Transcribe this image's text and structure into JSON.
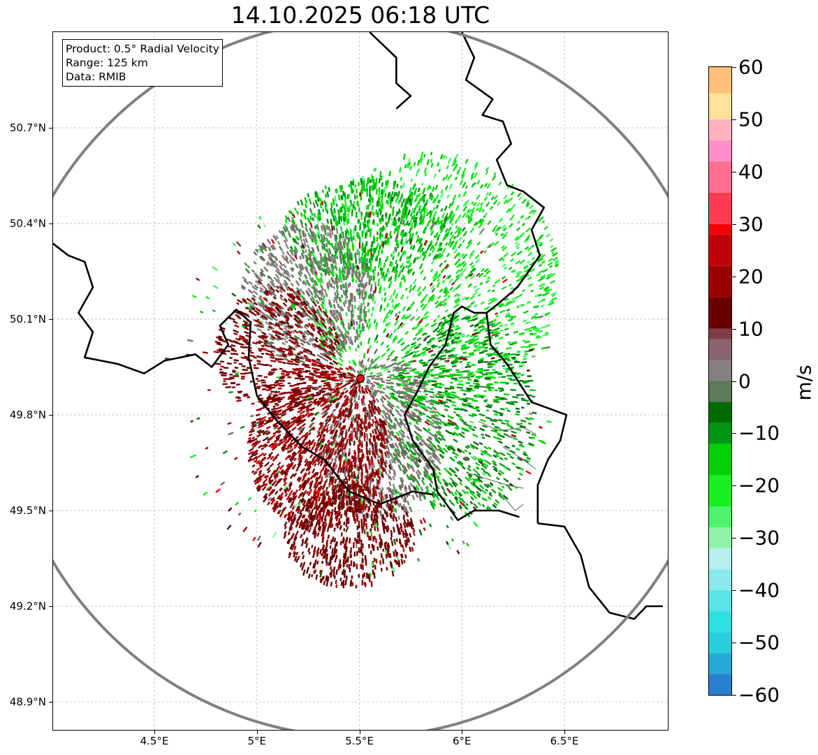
{
  "title": "14.10.2025 06:18 UTC",
  "info_box": {
    "product": "Product: 0.5° Radial Velocity",
    "range": "Range: 125 km",
    "data": "Data: RMIB"
  },
  "map": {
    "lon_range": [
      4.0,
      7.0
    ],
    "lat_range": [
      48.8,
      50.98
    ],
    "lat_ticks": [
      {
        "value": 50.7,
        "label": "50.7°N"
      },
      {
        "value": 50.4,
        "label": "50.4°N"
      },
      {
        "value": 50.1,
        "label": "50.1°N"
      },
      {
        "value": 49.8,
        "label": "49.8°N"
      },
      {
        "value": 49.5,
        "label": "49.5°N"
      },
      {
        "value": 49.2,
        "label": "49.2°N"
      },
      {
        "value": 48.9,
        "label": "48.9°N"
      }
    ],
    "lon_ticks": [
      {
        "value": 4.5,
        "label": "4.5°E"
      },
      {
        "value": 5.0,
        "label": "5°E"
      },
      {
        "value": 5.5,
        "label": "5.5°E"
      },
      {
        "value": 6.0,
        "label": "6°E"
      },
      {
        "value": 6.5,
        "label": "6.5°E"
      }
    ],
    "radar_site": {
      "lon": 5.505,
      "lat": 49.914
    },
    "range_km": 125,
    "colors": {
      "range_ring": "#808080",
      "gridline": "#b0b0b0",
      "border": "#000000",
      "province_border": "#7a7a7a",
      "radar_marker": "#e8141b"
    },
    "national_borders": [
      [
        [
          6.0,
          51.0
        ],
        [
          6.06,
          50.92
        ],
        [
          6.02,
          50.85
        ],
        [
          6.15,
          50.79
        ],
        [
          6.1,
          50.74
        ],
        [
          6.2,
          50.72
        ],
        [
          6.24,
          50.65
        ],
        [
          6.17,
          50.6
        ],
        [
          6.22,
          50.52
        ],
        [
          6.3,
          50.5
        ],
        [
          6.4,
          50.45
        ],
        [
          6.34,
          50.38
        ],
        [
          6.38,
          50.3
        ],
        [
          6.27,
          50.2
        ],
        [
          6.18,
          50.15
        ],
        [
          6.12,
          50.12
        ]
      ],
      [
        [
          6.12,
          50.12
        ],
        [
          6.06,
          50.12
        ],
        [
          6.0,
          50.14
        ],
        [
          5.96,
          50.12
        ],
        [
          5.92,
          50.02
        ],
        [
          5.84,
          49.95
        ],
        [
          5.78,
          49.87
        ],
        [
          5.72,
          49.8
        ],
        [
          5.76,
          49.72
        ],
        [
          5.86,
          49.63
        ],
        [
          5.88,
          49.56
        ],
        [
          5.98,
          49.47
        ],
        [
          6.06,
          49.5
        ],
        [
          6.18,
          49.5
        ],
        [
          6.28,
          49.48
        ]
      ],
      [
        [
          6.12,
          50.12
        ],
        [
          6.14,
          50.02
        ],
        [
          6.22,
          49.96
        ],
        [
          6.34,
          49.84
        ],
        [
          6.51,
          49.8
        ],
        [
          6.48,
          49.72
        ],
        [
          6.42,
          49.66
        ],
        [
          6.37,
          49.58
        ],
        [
          6.37,
          49.46
        ]
      ],
      [
        [
          6.37,
          49.46
        ],
        [
          6.5,
          49.45
        ],
        [
          6.58,
          49.36
        ],
        [
          6.62,
          49.26
        ],
        [
          6.72,
          49.18
        ],
        [
          6.84,
          49.16
        ],
        [
          6.9,
          49.2
        ],
        [
          6.98,
          49.2
        ]
      ],
      [
        [
          4.0,
          50.34
        ],
        [
          4.08,
          50.3
        ],
        [
          4.16,
          50.28
        ],
        [
          4.2,
          50.2
        ],
        [
          4.13,
          50.12
        ],
        [
          4.2,
          50.06
        ],
        [
          4.16,
          49.98
        ],
        [
          4.32,
          49.96
        ],
        [
          4.45,
          49.93
        ],
        [
          4.55,
          49.97
        ],
        [
          4.7,
          49.99
        ],
        [
          4.78,
          49.95
        ],
        [
          4.86,
          50.02
        ],
        [
          4.82,
          50.08
        ],
        [
          4.9,
          50.13
        ],
        [
          4.97,
          50.09
        ],
        [
          4.96,
          49.98
        ],
        [
          5.0,
          49.86
        ],
        [
          5.1,
          49.78
        ],
        [
          5.22,
          49.7
        ],
        [
          5.33,
          49.66
        ],
        [
          5.45,
          49.56
        ],
        [
          5.6,
          49.52
        ],
        [
          5.76,
          49.56
        ],
        [
          5.86,
          49.55
        ]
      ],
      [
        [
          5.55,
          51.0
        ],
        [
          5.68,
          50.92
        ],
        [
          5.68,
          50.84
        ],
        [
          5.75,
          50.8
        ],
        [
          5.68,
          50.76
        ]
      ]
    ],
    "province_borders": [
      [
        [
          6.08,
          49.78
        ],
        [
          6.18,
          49.75
        ],
        [
          6.3,
          49.76
        ],
        [
          6.36,
          49.74
        ]
      ],
      [
        [
          6.2,
          49.7
        ],
        [
          6.3,
          49.66
        ],
        [
          6.36,
          49.63
        ]
      ],
      [
        [
          6.02,
          49.62
        ],
        [
          6.12,
          49.6
        ],
        [
          6.22,
          49.58
        ],
        [
          6.3,
          49.57
        ]
      ],
      [
        [
          6.18,
          49.56
        ],
        [
          6.26,
          49.5
        ],
        [
          6.3,
          49.52
        ]
      ]
    ]
  },
  "colorbar": {
    "vmin": -60,
    "vmax": 60,
    "ticks": [
      {
        "value": 60,
        "label": "60"
      },
      {
        "value": 50,
        "label": "50"
      },
      {
        "value": 40,
        "label": "40"
      },
      {
        "value": 30,
        "label": "30"
      },
      {
        "value": 20,
        "label": "20"
      },
      {
        "value": 10,
        "label": "10"
      },
      {
        "value": 0,
        "label": "0"
      },
      {
        "value": -10,
        "label": "−10"
      },
      {
        "value": -20,
        "label": "−20"
      },
      {
        "value": -30,
        "label": "−30"
      },
      {
        "value": -40,
        "label": "−40"
      },
      {
        "value": -50,
        "label": "−50"
      },
      {
        "value": -60,
        "label": "−60"
      }
    ],
    "unit": "m/s",
    "stops": [
      {
        "value": -60,
        "color": "#2a7fd0"
      },
      {
        "value": -56,
        "color": "#27a9d6"
      },
      {
        "value": -52,
        "color": "#26cfdd"
      },
      {
        "value": -48,
        "color": "#2ee0e0"
      },
      {
        "value": -44,
        "color": "#59e3e4"
      },
      {
        "value": -40,
        "color": "#8ae9ea"
      },
      {
        "value": -36,
        "color": "#b6eff0"
      },
      {
        "value": -32,
        "color": "#90f2a9"
      },
      {
        "value": -28,
        "color": "#4cf36b"
      },
      {
        "value": -24,
        "color": "#18ee20"
      },
      {
        "value": -18,
        "color": "#02cf06"
      },
      {
        "value": -12,
        "color": "#019514"
      },
      {
        "value": -8,
        "color": "#006a00"
      },
      {
        "value": -4,
        "color": "#5a7a5a"
      },
      {
        "value": 0,
        "color": "#878080"
      },
      {
        "value": 4,
        "color": "#89646e"
      },
      {
        "value": 8,
        "color": "#7e3e46"
      },
      {
        "value": 10,
        "color": "#6a0000"
      },
      {
        "value": 16,
        "color": "#9a0000"
      },
      {
        "value": 22,
        "color": "#c00008"
      },
      {
        "value": 28,
        "color": "#f20005"
      },
      {
        "value": 30,
        "color": "#ff3b52"
      },
      {
        "value": 36,
        "color": "#ff6f92"
      },
      {
        "value": 42,
        "color": "#ff90c8"
      },
      {
        "value": 46,
        "color": "#ffb3c0"
      },
      {
        "value": 50,
        "color": "#ffe19a"
      },
      {
        "value": 55,
        "color": "#ffc07a"
      },
      {
        "value": 60,
        "color": "#ff9a52"
      }
    ]
  },
  "echo_regions": [
    {
      "lon": 5.85,
      "lat": 50.22,
      "rlon": 0.62,
      "rlat": 0.4,
      "vmin": -26,
      "vmax": -14,
      "count": 1300
    },
    {
      "lon": 5.55,
      "lat": 50.38,
      "rlon": 0.42,
      "rlat": 0.16,
      "vmin": -18,
      "vmax": -8,
      "count": 600
    },
    {
      "lon": 6.0,
      "lat": 49.8,
      "rlon": 0.36,
      "rlat": 0.32,
      "vmin": -16,
      "vmax": -6,
      "count": 900
    },
    {
      "lon": 5.25,
      "lat": 50.18,
      "rlon": 0.32,
      "rlat": 0.22,
      "vmin": -4,
      "vmax": 6,
      "count": 800
    },
    {
      "lon": 5.6,
      "lat": 49.72,
      "rlon": 0.3,
      "rlat": 0.26,
      "vmin": -2,
      "vmax": 8,
      "count": 800
    },
    {
      "lon": 5.3,
      "lat": 49.7,
      "rlon": 0.34,
      "rlat": 0.26,
      "vmin": 12,
      "vmax": 24,
      "count": 1400
    },
    {
      "lon": 5.1,
      "lat": 50.0,
      "rlon": 0.3,
      "rlat": 0.2,
      "vmin": 10,
      "vmax": 20,
      "count": 500
    },
    {
      "lon": 5.45,
      "lat": 49.42,
      "rlon": 0.32,
      "rlat": 0.16,
      "vmin": 10,
      "vmax": 18,
      "count": 600
    },
    {
      "lon": 5.5,
      "lat": 49.9,
      "rlon": 0.95,
      "rlat": 0.62,
      "vmin": -30,
      "vmax": 30,
      "count": 400
    }
  ]
}
